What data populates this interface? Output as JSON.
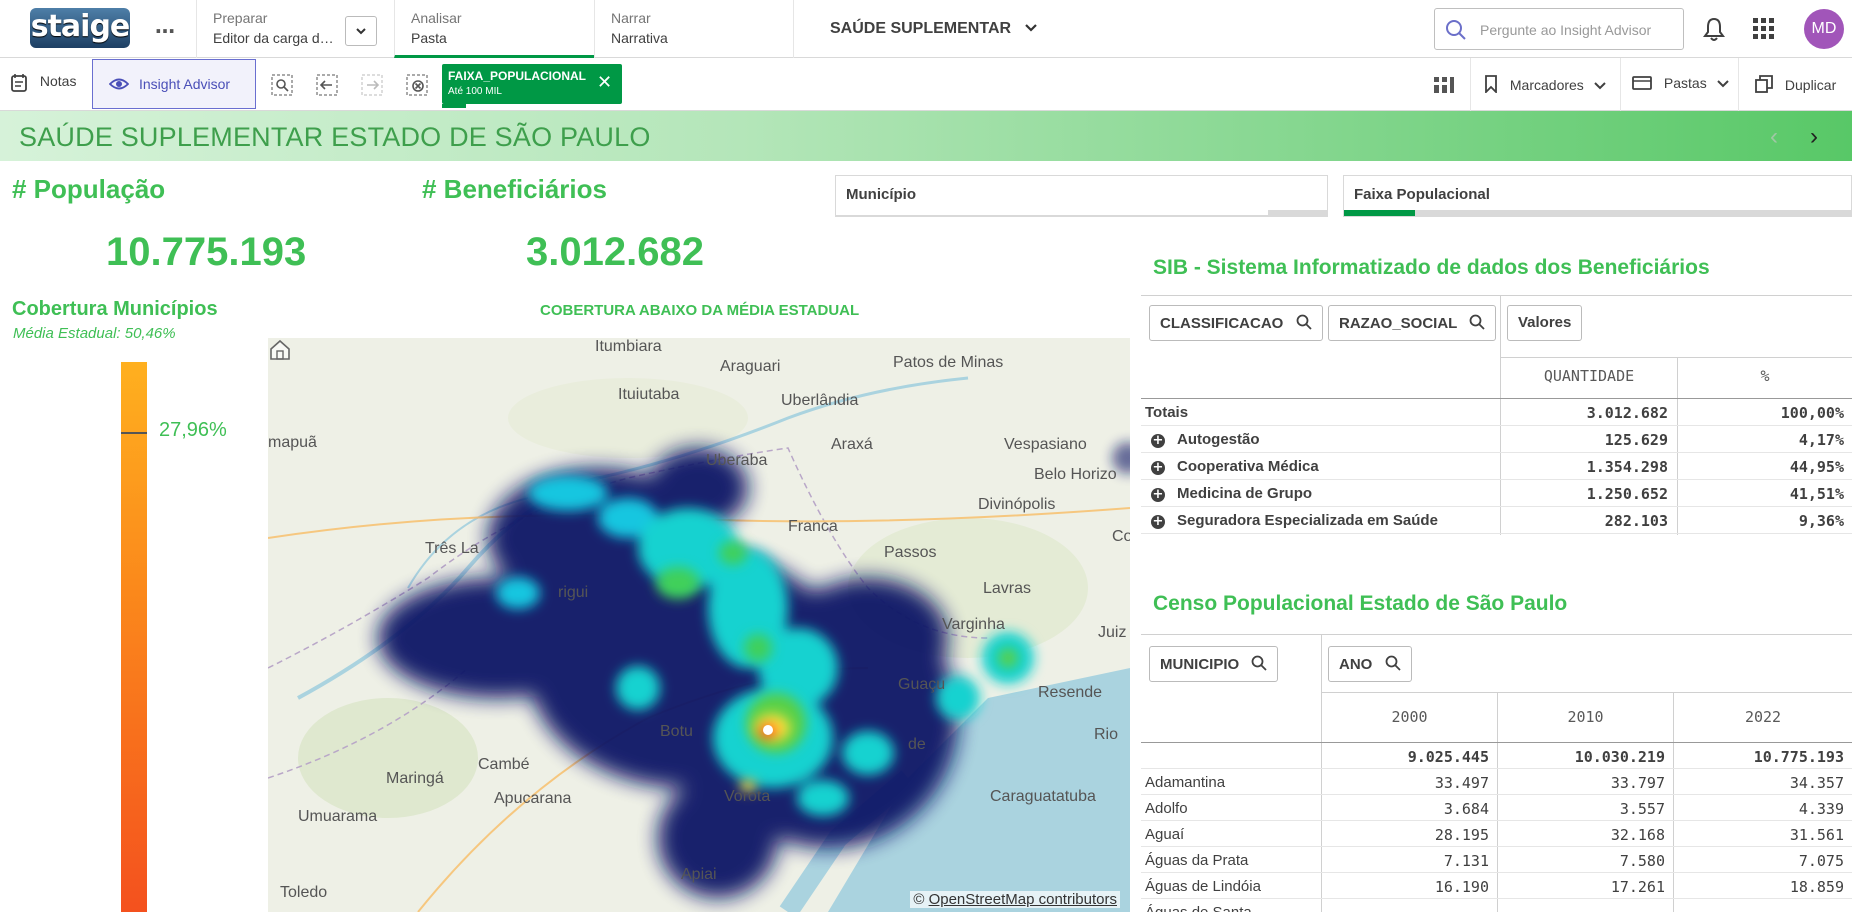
{
  "topbar": {
    "logo_text": "staige",
    "more_label": "…",
    "prepare": {
      "label": "Preparar",
      "value": "Editor da carga d…"
    },
    "analyze": {
      "label": "Analisar",
      "value": "Pasta"
    },
    "narrate": {
      "label": "Narrar",
      "value": "Narrativa"
    },
    "app_title": "SAÚDE SUPLEMENTAR",
    "search_placeholder": "Pergunte ao Insight Advisor",
    "avatar_initials": "MD"
  },
  "toolbar": {
    "notes_label": "Notas",
    "insight_label": "Insight Advisor",
    "selection_chip": {
      "field": "FAIXA_POPULACIONAL",
      "value": "Até 100 MIL"
    },
    "bookmarks_label": "Marcadores",
    "sheets_label": "Pastas",
    "duplicate_label": "Duplicar"
  },
  "sheet": {
    "title": "SAÚDE SUPLEMENTAR ESTADO DE SÃO PAULO"
  },
  "kpis": {
    "population": {
      "title": "# População",
      "value": "10.775.193"
    },
    "beneficiaries": {
      "title": "# Beneficiários",
      "value": "3.012.682"
    }
  },
  "filters": {
    "municipio": {
      "label": "Município",
      "selected_fraction": 0.0
    },
    "faixa": {
      "label": "Faixa Populacional",
      "selected_fraction": 0.14
    }
  },
  "coverage": {
    "title": "Cobertura Municípios",
    "subtitle": "Média Estadual: 50,46%",
    "value_label": "27,96%",
    "value": 27.96,
    "gradient": [
      "#ffb01f",
      "#f4511e"
    ]
  },
  "map": {
    "title": "COBERTURA ABAIXO DA MÉDIA ESTADUAL",
    "attribution_prefix": "© ",
    "attribution_link": "OpenStreetMap contributors",
    "cities": [
      "Itumbiara",
      "Araguari",
      "Patos de Minas",
      "Ituiutaba",
      "Uberlândia",
      "mapuã",
      "Uberaba",
      "Araxá",
      "Vespasiano",
      "Belo Horizo",
      "Divinópolis",
      "Três La",
      "rigui",
      "Franca",
      "Passos",
      "Lavras",
      "Co",
      "Varginha",
      "Juiz",
      "Guaçu",
      "Resende",
      "Maringá",
      "Cambé",
      "Apucarana",
      "Botu",
      "Vorota",
      "Rio",
      "Umuarama",
      "Toledo",
      "Apiai",
      "Caraguatatuba",
      "de"
    ]
  },
  "sib": {
    "title": "SIB - Sistema Informatizado de dados dos Beneficiários",
    "dimension_buttons": [
      "CLASSIFICACAO",
      "RAZAO_SOCIAL"
    ],
    "values_button": "Valores",
    "columns": [
      "QUANTIDADE",
      "%"
    ],
    "totals": {
      "label": "Totais",
      "quantity": "3.012.682",
      "pct": "100,00%"
    },
    "rows": [
      {
        "label": "Autogestão",
        "quantity": "125.629",
        "pct": "4,17%"
      },
      {
        "label": "Cooperativa Médica",
        "quantity": "1.354.298",
        "pct": "44,95%"
      },
      {
        "label": "Medicina de Grupo",
        "quantity": "1.250.652",
        "pct": "41,51%"
      },
      {
        "label": "Seguradora Especializada em Saúde",
        "quantity": "282.103",
        "pct": "9,36%"
      }
    ]
  },
  "censo": {
    "title": "Censo Populacional Estado de São Paulo",
    "dimension_buttons": [
      "MUNICIPIO",
      "ANO"
    ],
    "years": [
      "2000",
      "2010",
      "2022"
    ],
    "totals": [
      "9.025.445",
      "10.030.219",
      "10.775.193"
    ],
    "rows": [
      {
        "name": "Adamantina",
        "v": [
          "33.497",
          "33.797",
          "34.357"
        ]
      },
      {
        "name": "Adolfo",
        "v": [
          "3.684",
          "3.557",
          "4.339"
        ]
      },
      {
        "name": "Aguaí",
        "v": [
          "28.195",
          "32.168",
          "31.561"
        ]
      },
      {
        "name": "Águas da Prata",
        "v": [
          "7.131",
          "7.580",
          "7.075"
        ]
      },
      {
        "name": "Águas de Lindóia",
        "v": [
          "16.190",
          "17.261",
          "18.859"
        ]
      },
      {
        "name": "Águas de Santa",
        "v": [
          "",
          "",
          ""
        ]
      }
    ]
  },
  "colors": {
    "accent_green": "#3fbf55",
    "qlik_green": "#009845",
    "avatar": "#a155b9"
  }
}
